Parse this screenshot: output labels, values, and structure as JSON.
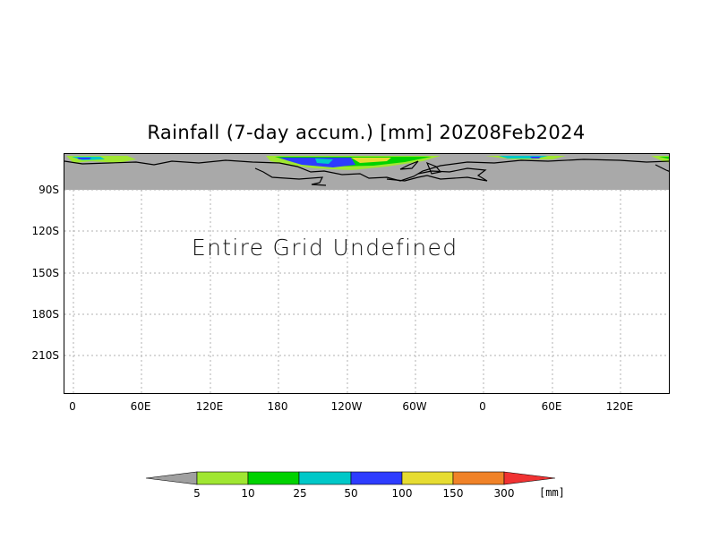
{
  "title": "Rainfall (7-day accum.) [mm] 20Z08Feb2024",
  "message": "Entire Grid Undefined",
  "y_axis": {
    "ticks": [
      "90S",
      "120S",
      "150S",
      "180S",
      "210S"
    ]
  },
  "x_axis": {
    "ticks": [
      "0",
      "60E",
      "120E",
      "180",
      "120W",
      "60W",
      "0",
      "60E",
      "120E"
    ]
  },
  "colorbar": {
    "labels": [
      "5",
      "10",
      "25",
      "50",
      "100",
      "150",
      "300"
    ],
    "unit": "[mm]",
    "colors": [
      "#a0a0a0",
      "#a0e632",
      "#00d200",
      "#00c8c8",
      "#2d3cff",
      "#e6dc32",
      "#f08228",
      "#f03232"
    ]
  },
  "colors": {
    "land_mask": "#a9a9a9",
    "grid": "#b0b0b0"
  }
}
